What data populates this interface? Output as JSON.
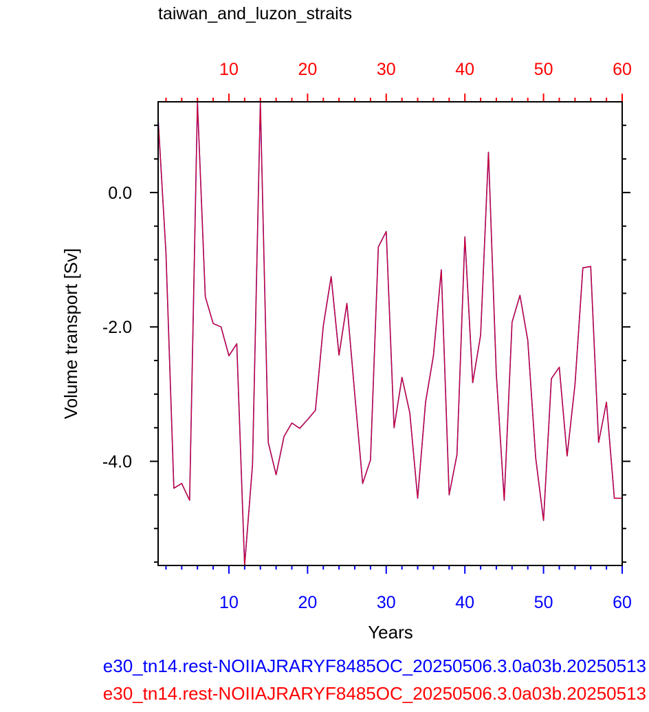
{
  "chart_data": {
    "type": "line",
    "title": "taiwan_and_luzon_straits",
    "xlabel": "Years",
    "ylabel": "Volume transport [Sv]",
    "xlim": [
      1,
      60
    ],
    "ylim": [
      -5.55,
      1.35
    ],
    "x_ticks": [
      10,
      20,
      30,
      40,
      50,
      60
    ],
    "x_tick_labels": [
      "10",
      "20",
      "30",
      "40",
      "50",
      "60"
    ],
    "y_ticks": [
      0.0,
      -2.0,
      -4.0
    ],
    "y_tick_labels": [
      "0.0",
      "-2.0",
      "-4.0"
    ],
    "grid": false,
    "bottom_axis_color": "#0000ff",
    "top_axis_color": "#ff0000",
    "series": [
      {
        "name": "e30_tn14.rest-NOIIAJRARYF8485OC_20250506.3.0a03b.20250513",
        "color": "#0000ff",
        "x": [
          1,
          2,
          3,
          4,
          5,
          6,
          7,
          8,
          9,
          10,
          11,
          12,
          13,
          14,
          15,
          16,
          17,
          18,
          19,
          20,
          21,
          22,
          23,
          24,
          25,
          26,
          27,
          28,
          29,
          30,
          31,
          32,
          33,
          34,
          35,
          36,
          37,
          38,
          39,
          40,
          41,
          42,
          43,
          44,
          45,
          46,
          47,
          48,
          49,
          50,
          51,
          52,
          53,
          54,
          55,
          56,
          57,
          58,
          59,
          60
        ],
        "values": [
          1.1,
          -0.9,
          -4.4,
          -4.33,
          -4.58,
          1.35,
          -1.55,
          -1.95,
          -2.0,
          -2.43,
          -2.25,
          -5.55,
          -4.05,
          1.35,
          -3.72,
          -4.2,
          -3.63,
          -3.43,
          -3.51,
          -3.38,
          -3.24,
          -1.98,
          -1.25,
          -2.42,
          -1.65,
          -3.0,
          -4.33,
          -3.98,
          -0.81,
          -0.58,
          -3.5,
          -2.75,
          -3.28,
          -4.55,
          -3.12,
          -2.43,
          -1.15,
          -4.5,
          -3.9,
          -0.66,
          -2.83,
          -2.12,
          0.6,
          -2.7,
          -4.58,
          -1.93,
          -1.53,
          -2.2,
          -3.95,
          -4.88,
          -2.77,
          -2.6,
          -3.92,
          -2.85,
          -1.12,
          -1.1,
          -3.72,
          -3.12,
          -4.55,
          -4.55
        ]
      },
      {
        "name": "e30_tn14.rest-NOIIAJRARYF8485OC_20250506.3.0a03b.20250513",
        "color": "#ff0000",
        "x": [
          1,
          2,
          3,
          4,
          5,
          6,
          7,
          8,
          9,
          10,
          11,
          12,
          13,
          14,
          15,
          16,
          17,
          18,
          19,
          20,
          21,
          22,
          23,
          24,
          25,
          26,
          27,
          28,
          29,
          30,
          31,
          32,
          33,
          34,
          35,
          36,
          37,
          38,
          39,
          40,
          41,
          42,
          43,
          44,
          45,
          46,
          47,
          48,
          49,
          50,
          51,
          52,
          53,
          54,
          55,
          56,
          57,
          58,
          59,
          60
        ],
        "values": [
          1.1,
          -0.9,
          -4.4,
          -4.33,
          -4.58,
          1.35,
          -1.55,
          -1.95,
          -2.0,
          -2.43,
          -2.25,
          -5.55,
          -4.05,
          1.35,
          -3.72,
          -4.2,
          -3.63,
          -3.43,
          -3.51,
          -3.38,
          -3.24,
          -1.98,
          -1.25,
          -2.42,
          -1.65,
          -3.0,
          -4.33,
          -3.98,
          -0.81,
          -0.58,
          -3.5,
          -2.75,
          -3.28,
          -4.55,
          -3.12,
          -2.43,
          -1.15,
          -4.5,
          -3.9,
          -0.66,
          -2.83,
          -2.12,
          0.6,
          -2.7,
          -4.58,
          -1.93,
          -1.53,
          -2.2,
          -3.95,
          -4.88,
          -2.77,
          -2.6,
          -3.92,
          -2.85,
          -1.12,
          -1.1,
          -3.72,
          -3.12,
          -4.55,
          -4.55
        ]
      }
    ]
  },
  "legend": {
    "blue_text": "e30_tn14.rest-NOIIAJRARYF8485OC_20250506.3.0a03b.20250513",
    "red_text": "e30_tn14.rest-NOIIAJRARYF8485OC_20250506.3.0a03b.20250513",
    "blue_color": "#0000ff",
    "red_color": "#ff0000"
  }
}
